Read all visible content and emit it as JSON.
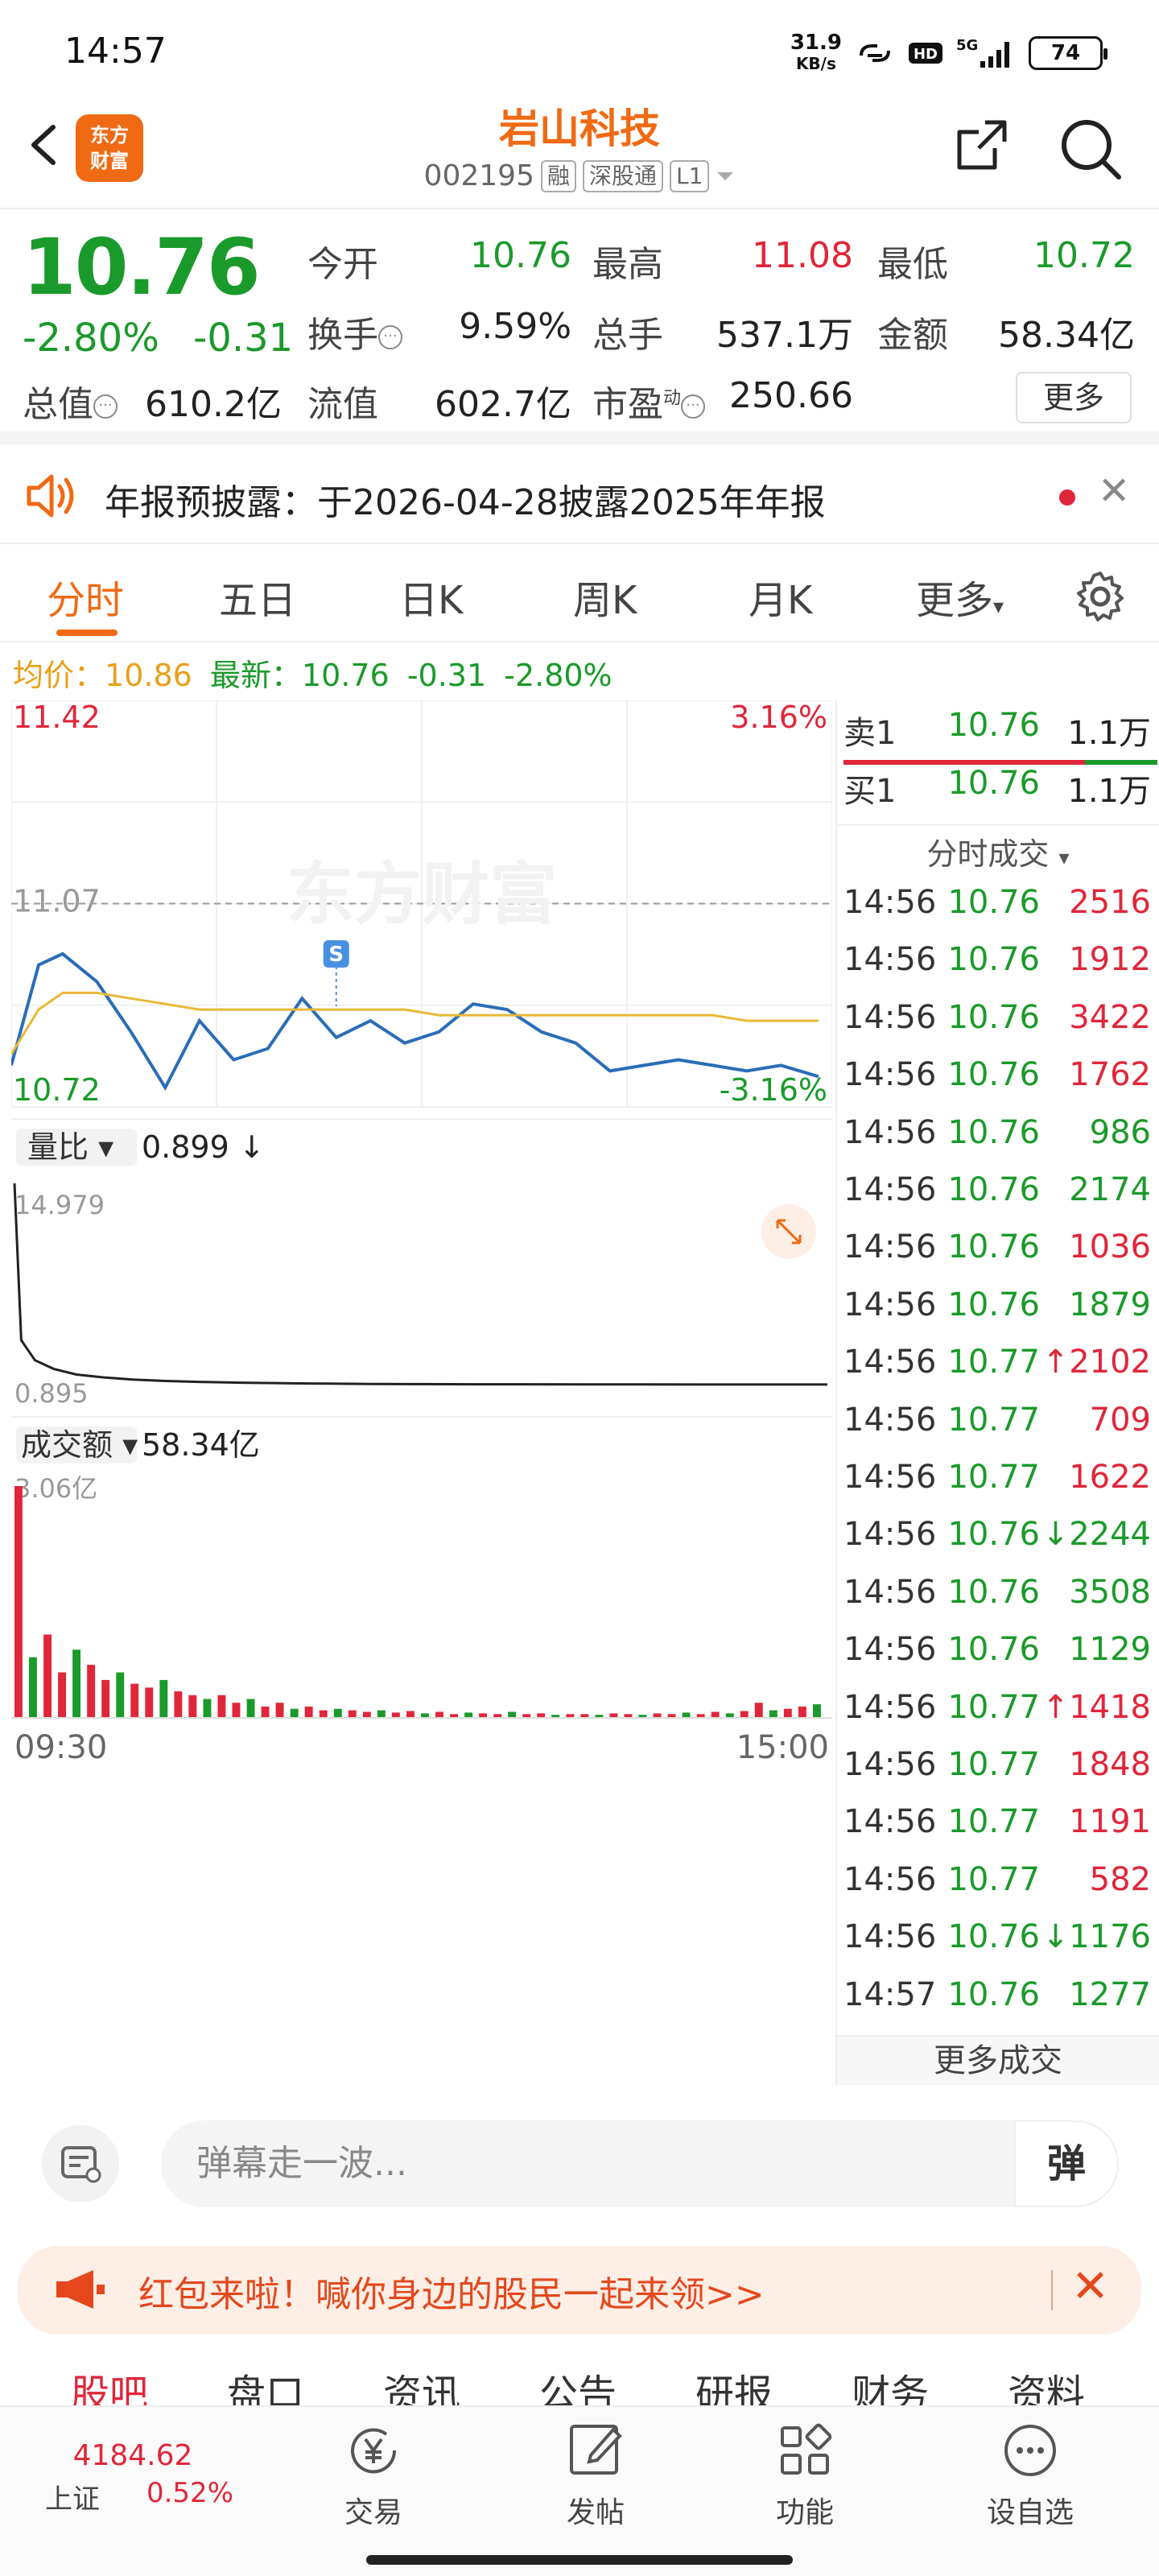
{
  "status_bar": {
    "time": "14:57",
    "net_speed": "31.9",
    "net_unit": "KB/s",
    "battery": "74"
  },
  "header": {
    "title": "岩山科技",
    "code": "002195",
    "tags": [
      "融",
      "深股通",
      "L1"
    ],
    "logo_line1": "东方",
    "logo_line2": "财富"
  },
  "quote": {
    "price": "10.76",
    "change_pct": "-2.80%",
    "change": "-0.31",
    "open_label": "今开",
    "open": "10.76",
    "high_label": "最高",
    "high": "11.08",
    "low_label": "最低",
    "low": "10.72",
    "turnover_label": "换手",
    "turnover": "9.59%",
    "volume_label": "总手",
    "volume": "537.1万",
    "amount_label": "金额",
    "amount": "58.34亿",
    "mktcap_label": "总值",
    "mktcap": "610.2亿",
    "float_label": "流值",
    "float": "602.7亿",
    "pe_label": "市盈",
    "pe_sup": "动",
    "pe": "250.66",
    "more": "更多"
  },
  "notice": {
    "text": "年报预披露：于2026-04-28披露2025年年报"
  },
  "tabs": [
    "分时",
    "五日",
    "日K",
    "周K",
    "月K",
    "更多"
  ],
  "summary": {
    "avg_label": "均价：",
    "avg": "10.86",
    "latest_label": "最新：",
    "latest": "10.76",
    "chg": "-0.31",
    "pct": "-2.80%"
  },
  "chart_labels": {
    "y_max": "11.42",
    "y_max_pct": "3.16%",
    "y_min": "10.72",
    "y_min_pct": "-3.16%",
    "prev_close": "11.07",
    "marker": "S",
    "watermark": "东方财富",
    "vol_ratio_label": "量比",
    "vol_ratio": "0.899",
    "vr_max": "14.979",
    "vr_min": "0.895",
    "amt_label": "成交额",
    "amt": "58.34亿",
    "amt_max": "3.06亿",
    "t_start": "09:30",
    "t_end": "15:00"
  },
  "order_book": {
    "ask_label": "卖1",
    "ask_price": "10.76",
    "ask_vol": "1.1万",
    "bid_label": "买1",
    "bid_price": "10.76",
    "bid_vol": "1.1万",
    "trades_label": "分时成交",
    "more_trades": "更多成交"
  },
  "trades": [
    {
      "t": "14:56",
      "p": "10.76",
      "v": "2516",
      "pc": "green",
      "vc": "red",
      "arrow": ""
    },
    {
      "t": "14:56",
      "p": "10.76",
      "v": "1912",
      "pc": "green",
      "vc": "red",
      "arrow": ""
    },
    {
      "t": "14:56",
      "p": "10.76",
      "v": "3422",
      "pc": "green",
      "vc": "red",
      "arrow": ""
    },
    {
      "t": "14:56",
      "p": "10.76",
      "v": "1762",
      "pc": "green",
      "vc": "red",
      "arrow": ""
    },
    {
      "t": "14:56",
      "p": "10.76",
      "v": "986",
      "pc": "green",
      "vc": "green",
      "arrow": ""
    },
    {
      "t": "14:56",
      "p": "10.76",
      "v": "2174",
      "pc": "green",
      "vc": "green",
      "arrow": ""
    },
    {
      "t": "14:56",
      "p": "10.76",
      "v": "1036",
      "pc": "green",
      "vc": "red",
      "arrow": ""
    },
    {
      "t": "14:56",
      "p": "10.76",
      "v": "1879",
      "pc": "green",
      "vc": "green",
      "arrow": ""
    },
    {
      "t": "14:56",
      "p": "10.77",
      "v": "2102",
      "pc": "green",
      "vc": "red",
      "arrow": "↑"
    },
    {
      "t": "14:56",
      "p": "10.77",
      "v": "709",
      "pc": "green",
      "vc": "red",
      "arrow": ""
    },
    {
      "t": "14:56",
      "p": "10.77",
      "v": "1622",
      "pc": "green",
      "vc": "red",
      "arrow": ""
    },
    {
      "t": "14:56",
      "p": "10.76",
      "v": "2244",
      "pc": "green",
      "vc": "green",
      "arrow": "↓"
    },
    {
      "t": "14:56",
      "p": "10.76",
      "v": "3508",
      "pc": "green",
      "vc": "green",
      "arrow": ""
    },
    {
      "t": "14:56",
      "p": "10.76",
      "v": "1129",
      "pc": "green",
      "vc": "green",
      "arrow": ""
    },
    {
      "t": "14:56",
      "p": "10.77",
      "v": "1418",
      "pc": "green",
      "vc": "red",
      "arrow": "↑"
    },
    {
      "t": "14:56",
      "p": "10.77",
      "v": "1848",
      "pc": "green",
      "vc": "red",
      "arrow": ""
    },
    {
      "t": "14:56",
      "p": "10.77",
      "v": "1191",
      "pc": "green",
      "vc": "red",
      "arrow": ""
    },
    {
      "t": "14:56",
      "p": "10.77",
      "v": "582",
      "pc": "green",
      "vc": "red",
      "arrow": ""
    },
    {
      "t": "14:56",
      "p": "10.76",
      "v": "1176",
      "pc": "green",
      "vc": "green",
      "arrow": "↓"
    },
    {
      "t": "14:57",
      "p": "10.76",
      "v": "1277",
      "pc": "green",
      "vc": "green",
      "arrow": ""
    }
  ],
  "comment": {
    "placeholder": "弹幕走一波...",
    "send": "弹"
  },
  "banner": {
    "text": "红包来啦！喊你身边的股民一起来领>>"
  },
  "subtabs": [
    "股吧",
    "盘口",
    "资讯",
    "公告",
    "研报",
    "财务",
    "资料"
  ],
  "bottom_nav": {
    "index_value": "4184.62",
    "index_name": "上证",
    "index_pct": "0.52%",
    "items": [
      "交易",
      "发帖",
      "功能",
      "设自选"
    ]
  },
  "colors": {
    "up": "#e0263a",
    "down": "#1a9a2a",
    "brand": "#f06a14",
    "price_line": "#2a6db8",
    "avg_line": "#e8b838"
  },
  "chart_data": {
    "type": "line",
    "title": "",
    "x_range": [
      "09:30",
      "15:00"
    ],
    "ylim": [
      10.72,
      11.42
    ],
    "prev_close": 11.07,
    "series": [
      {
        "name": "最新",
        "x": [
          "09:30",
          "09:38",
          "09:45",
          "09:55",
          "10:05",
          "10:15",
          "10:25",
          "10:35",
          "10:45",
          "10:55",
          "11:05",
          "11:15",
          "11:25",
          "13:05",
          "13:15",
          "13:25",
          "13:35",
          "13:45",
          "13:55",
          "14:05",
          "14:15",
          "14:25",
          "14:35",
          "14:45",
          "14:56"
        ],
        "values": [
          10.78,
          10.96,
          10.98,
          10.93,
          10.84,
          10.74,
          10.86,
          10.79,
          10.81,
          10.9,
          10.83,
          10.86,
          10.82,
          10.84,
          10.89,
          10.88,
          10.84,
          10.82,
          10.77,
          10.78,
          10.79,
          10.78,
          10.77,
          10.78,
          10.76
        ]
      },
      {
        "name": "均价",
        "x": [
          "09:30",
          "09:38",
          "09:45",
          "09:55",
          "10:05",
          "10:15",
          "10:25",
          "10:35",
          "10:45",
          "10:55",
          "11:05",
          "11:15",
          "11:25",
          "13:05",
          "13:15",
          "13:25",
          "13:35",
          "13:45",
          "13:55",
          "14:05",
          "14:15",
          "14:25",
          "14:35",
          "14:45",
          "14:56"
        ],
        "values": [
          10.8,
          10.88,
          10.91,
          10.91,
          10.9,
          10.89,
          10.88,
          10.88,
          10.88,
          10.88,
          10.88,
          10.88,
          10.88,
          10.87,
          10.87,
          10.87,
          10.87,
          10.87,
          10.87,
          10.87,
          10.87,
          10.87,
          10.86,
          10.86,
          10.86
        ]
      }
    ],
    "vol_ratio": {
      "ylim": [
        0.895,
        14.979
      ],
      "values": [
        14.979,
        4.0,
        2.6,
        2.0,
        1.6,
        1.4,
        1.25,
        1.15,
        1.08,
        1.03,
        0.99,
        0.96,
        0.94,
        0.93,
        0.92,
        0.915,
        0.91,
        0.905,
        0.902,
        0.9,
        0.899
      ]
    },
    "amount": {
      "ymax_label": "3.06亿",
      "values": [
        3.06,
        0.8,
        1.1,
        0.6,
        0.9,
        0.7,
        0.5,
        0.6,
        0.45,
        0.4,
        0.5,
        0.35,
        0.3,
        0.25,
        0.3,
        0.2,
        0.25,
        0.15,
        0.2,
        0.12,
        0.15,
        0.1,
        0.12,
        0.1,
        0.08,
        0.1,
        0.07,
        0.09,
        0.06,
        0.08,
        0.05,
        0.07,
        0.06,
        0.05,
        0.08,
        0.05,
        0.06,
        0.04,
        0.05,
        0.05,
        0.04,
        0.06,
        0.05,
        0.04,
        0.06,
        0.05,
        0.07,
        0.05,
        0.08,
        0.06,
        0.09,
        0.2,
        0.1,
        0.12,
        0.15,
        0.18
      ]
    }
  }
}
